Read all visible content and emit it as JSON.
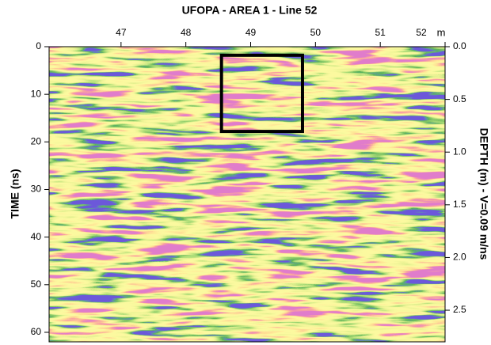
{
  "chart_data": {
    "type": "radargram",
    "title": "UFOPA - AREA 1 - Line 52",
    "x_unit_label": "m",
    "ylabel": "TIME (ns)",
    "y2label": "DEPTH (m) - V=0.09 m/ns",
    "xlim": [
      45.89,
      52
    ],
    "xticks": [
      47,
      48,
      49,
      50,
      51,
      52
    ],
    "ylim": [
      0,
      62
    ],
    "yticks": [
      0,
      10,
      20,
      30,
      40,
      50,
      60
    ],
    "y2lim": [
      0,
      2.8
    ],
    "y2ticks": [
      {
        "value": 0,
        "label": "0.0"
      },
      0.5,
      {
        "value": 1,
        "label": "1.0"
      },
      1.5,
      {
        "value": 2,
        "label": "2.0"
      },
      2.5
    ],
    "highlight_box": {
      "xlim": [
        48.55,
        49.8
      ],
      "ylim": [
        1.8,
        17.8
      ],
      "color": "#000000"
    }
  }
}
